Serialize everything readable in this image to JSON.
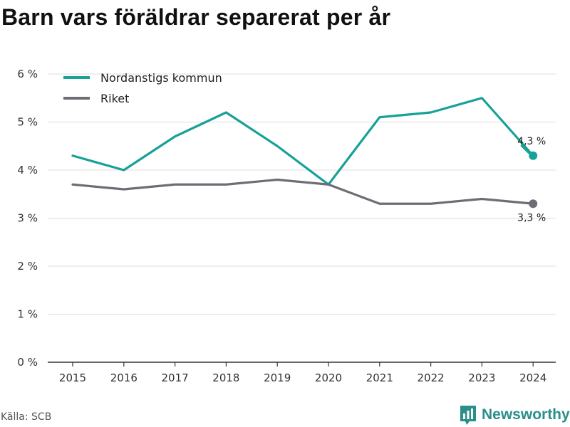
{
  "title": "Barn vars föräldrar separerat per år",
  "source": "Källa: SCB",
  "brand": {
    "name": "Newsworthy",
    "logo_icon": "bar-chart-logo-icon",
    "color": "#2a8f8a"
  },
  "chart_data": {
    "type": "line",
    "x": [
      "2015",
      "2016",
      "2017",
      "2018",
      "2019",
      "2020",
      "2021",
      "2022",
      "2023",
      "2024"
    ],
    "series": [
      {
        "name": "Nordanstigs kommun",
        "color": "#17a198",
        "values": [
          4.3,
          4.0,
          4.7,
          5.2,
          4.5,
          3.7,
          5.1,
          5.2,
          5.5,
          4.3
        ],
        "end_label": "4,3 %"
      },
      {
        "name": "Riket",
        "color": "#6e6d75",
        "values": [
          3.7,
          3.6,
          3.7,
          3.7,
          3.8,
          3.7,
          3.3,
          3.3,
          3.4,
          3.3
        ],
        "end_label": "3,3 %"
      }
    ],
    "y_ticks": [
      {
        "value": 0,
        "label": "0 %"
      },
      {
        "value": 1,
        "label": "1 %"
      },
      {
        "value": 2,
        "label": "2 %"
      },
      {
        "value": 3,
        "label": "3 %"
      },
      {
        "value": 4,
        "label": "4 %"
      },
      {
        "value": 5,
        "label": "5 %"
      },
      {
        "value": 6,
        "label": "6 %"
      }
    ],
    "ylim": [
      0,
      6
    ],
    "grid": true,
    "legend_position": "top-left",
    "xlabel": "",
    "ylabel": ""
  }
}
